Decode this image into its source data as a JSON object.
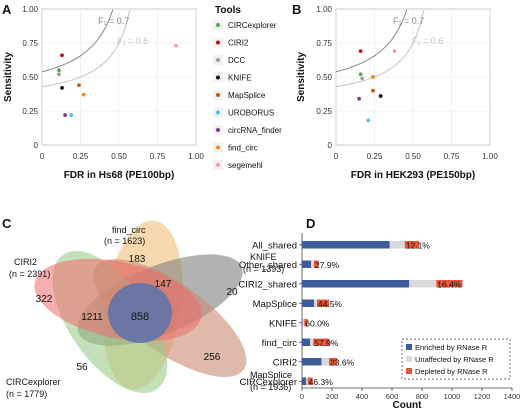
{
  "panels": {
    "A": "A",
    "B": "B",
    "C": "C",
    "D": "D"
  },
  "colors": {
    "CIRCexplorer": "#4caf50",
    "CIRI2": "#c0121a",
    "DCC": "#9e9e9e",
    "KNIFE": "#111111",
    "MapSplice": "#b85c1a",
    "UROBORUS": "#4fc3e6",
    "circRNA_finder": "#7b3b8c",
    "find_circ": "#f08a1a",
    "segemehl": "#f59db8",
    "curve_f07": "#8a8a8a",
    "curve_f06": "#c4c4c4",
    "bar_enriched": "#3e5c9a",
    "bar_unaffected": "#d9d9d9",
    "bar_depleted": "#e8553a"
  },
  "legend": {
    "title": "Tools",
    "items": [
      "CIRCexplorer",
      "CIRI2",
      "DCC",
      "KNIFE",
      "MapSplice",
      "UROBORUS",
      "circRNA_finder",
      "find_circ",
      "segemehl"
    ]
  },
  "chart_data": [
    {
      "panel": "A",
      "type": "scatter",
      "xlabel": "FDR in Hs68 (PE100bp)",
      "ylabel": "Sensitivity",
      "xlim": [
        0,
        1.0
      ],
      "ylim": [
        0,
        1.0
      ],
      "xticks": [
        "0",
        "0.25",
        "0.50",
        "0.75",
        "1.00"
      ],
      "yticks": [
        "0",
        "0.25",
        "0.50",
        "0.75",
        "1.00"
      ],
      "curve_labels": [
        "F₁ = 0.7",
        "F₁ = 0.6"
      ],
      "points": [
        {
          "tool": "CIRCexplorer",
          "x": 0.11,
          "y": 0.55
        },
        {
          "tool": "CIRI2",
          "x": 0.13,
          "y": 0.66
        },
        {
          "tool": "DCC",
          "x": 0.11,
          "y": 0.52
        },
        {
          "tool": "KNIFE",
          "x": 0.13,
          "y": 0.42
        },
        {
          "tool": "MapSplice",
          "x": 0.24,
          "y": 0.44
        },
        {
          "tool": "UROBORUS",
          "x": 0.19,
          "y": 0.22
        },
        {
          "tool": "circRNA_finder",
          "x": 0.15,
          "y": 0.22
        },
        {
          "tool": "find_circ",
          "x": 0.27,
          "y": 0.37
        },
        {
          "tool": "segemehl",
          "x": 0.87,
          "y": 0.73
        }
      ]
    },
    {
      "panel": "B",
      "type": "scatter",
      "xlabel": "FDR in HEK293 (PE150bp)",
      "ylabel": "Sensitivity",
      "xlim": [
        0,
        1.0
      ],
      "ylim": [
        0,
        1.0
      ],
      "xticks": [
        "0",
        "0.25",
        "0.50",
        "0.75",
        "1.00"
      ],
      "yticks": [
        "0",
        "0.25",
        "0.50",
        "0.75",
        "1.00"
      ],
      "curve_labels": [
        "F₁ = 0.7",
        "F₁ = 0.6"
      ],
      "points": [
        {
          "tool": "CIRCexplorer",
          "x": 0.16,
          "y": 0.52
        },
        {
          "tool": "CIRI2",
          "x": 0.16,
          "y": 0.69
        },
        {
          "tool": "DCC",
          "x": 0.17,
          "y": 0.49
        },
        {
          "tool": "KNIFE",
          "x": 0.29,
          "y": 0.36
        },
        {
          "tool": "MapSplice",
          "x": 0.24,
          "y": 0.4
        },
        {
          "tool": "UROBORUS",
          "x": 0.21,
          "y": 0.18
        },
        {
          "tool": "circRNA_finder",
          "x": 0.15,
          "y": 0.34
        },
        {
          "tool": "find_circ",
          "x": 0.24,
          "y": 0.5
        },
        {
          "tool": "segemehl",
          "x": 0.38,
          "y": 0.69
        }
      ]
    },
    {
      "panel": "D",
      "type": "bar",
      "orientation": "horizontal",
      "stacked": true,
      "xlabel": "Count",
      "xlim": [
        0,
        1400
      ],
      "xticks": [
        "0",
        "200",
        "400",
        "600",
        "800",
        "1000",
        "1200",
        "1400"
      ],
      "categories": [
        "All_shared",
        "Other_shared",
        "CIRI2_shared",
        "MapSplice",
        "KNIFE",
        "find_circ",
        "CIRI2",
        "CIRCexplorer"
      ],
      "series": [
        {
          "name": "Enriched by RNase R",
          "values": [
            585,
            60,
            715,
            80,
            3,
            55,
            130,
            28
          ]
        },
        {
          "name": "Unaffected by RNase R",
          "values": [
            100,
            20,
            180,
            20,
            12,
            20,
            50,
            10
          ]
        },
        {
          "name": "Depleted by RNase R",
          "values": [
            95,
            30,
            175,
            80,
            22,
            108,
            55,
            33
          ]
        }
      ],
      "depleted_labels": [
        "12.1%",
        "27.9%",
        "16.4%",
        "44.5%",
        "60.0%",
        "57.9%",
        "23.6%",
        "46.3%"
      ]
    }
  ],
  "venn": {
    "sets": [
      {
        "name": "find_circ",
        "count": "(n = 1623)"
      },
      {
        "name": "KNIFE",
        "count": "(n = 1393)"
      },
      {
        "name": "MapSplice",
        "count": "(n = 1936)"
      },
      {
        "name": "CIRCexplorer",
        "count": "(n = 1779)"
      },
      {
        "name": "CIRI2",
        "count": "(n = 2391)"
      }
    ],
    "regions": [
      "183",
      "20",
      "256",
      "56",
      "322",
      "147",
      "1211",
      "858"
    ]
  }
}
